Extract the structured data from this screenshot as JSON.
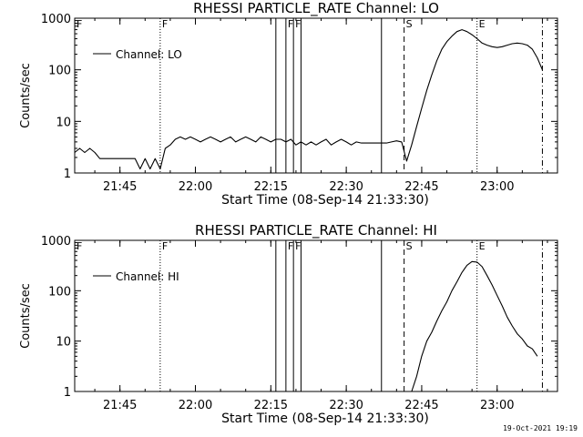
{
  "footer": {
    "timestamp": "19-Oct-2021 19:19"
  },
  "chart_data": [
    {
      "type": "line",
      "title": "RHESSI PARTICLE_RATE Channel: LO",
      "xlabel": "Start Time (08-Sep-14 21:33:30)",
      "ylabel": "Counts/sec",
      "y_scale": "log",
      "ylim": [
        1,
        1000
      ],
      "xlim": [
        "21:36",
        "23:12"
      ],
      "yticks": [
        {
          "v": 1,
          "label": "1"
        },
        {
          "v": 10,
          "label": "10"
        },
        {
          "v": 100,
          "label": "100"
        },
        {
          "v": 1000,
          "label": "1000"
        }
      ],
      "xticks": [
        "21:45",
        "22:00",
        "22:15",
        "22:30",
        "22:45",
        "23:00"
      ],
      "legend": {
        "position": "top-left",
        "entries": [
          "Channel: LO"
        ]
      },
      "markers": [
        {
          "time": "21:36",
          "label": "F",
          "style": "dotted"
        },
        {
          "time": "21:53",
          "label": "F",
          "style": "dotted"
        },
        {
          "time": "22:16",
          "label": "",
          "style": "solid"
        },
        {
          "time": "22:18",
          "label": "F",
          "style": "solid"
        },
        {
          "time": "22:19.5",
          "label": "F",
          "style": "solid"
        },
        {
          "time": "22:21",
          "label": "",
          "style": "solid"
        },
        {
          "time": "22:37",
          "label": "",
          "style": "solid"
        },
        {
          "time": "22:41.5",
          "label": "S",
          "style": "dashed"
        },
        {
          "time": "22:56",
          "label": "E",
          "style": "dotted"
        },
        {
          "time": "23:09",
          "label": "",
          "style": "dashdot"
        }
      ],
      "series": [
        {
          "x": [
            "21:36",
            "21:37",
            "21:38",
            "21:39",
            "21:40",
            "21:41",
            "21:42",
            "21:43",
            "21:44",
            "21:45",
            "21:46",
            "21:47",
            "21:48",
            "21:49",
            "21:50",
            "21:51",
            "21:52",
            "21:53",
            "21:54",
            "21:55",
            "21:56",
            "21:57",
            "21:58",
            "21:59",
            "22:00",
            "22:01",
            "22:02",
            "22:03",
            "22:04",
            "22:05",
            "22:06",
            "22:07",
            "22:08",
            "22:09",
            "22:10",
            "22:11",
            "22:12",
            "22:13",
            "22:14",
            "22:15",
            "22:16",
            "22:17",
            "22:18",
            "22:19",
            "22:20",
            "22:21",
            "22:22",
            "22:23",
            "22:24",
            "22:25",
            "22:26",
            "22:27",
            "22:28",
            "22:29",
            "22:30",
            "22:31",
            "22:32",
            "22:33",
            "22:34",
            "22:35",
            "22:36",
            "22:37",
            "22:38",
            "22:39",
            "22:40",
            "22:41",
            "22:42",
            "22:43",
            "22:44",
            "22:45",
            "22:46",
            "22:47",
            "22:48",
            "22:49",
            "22:50",
            "22:51",
            "22:52",
            "22:53",
            "22:54",
            "22:55",
            "22:56",
            "22:57",
            "22:58",
            "22:59",
            "23:00",
            "23:01",
            "23:02",
            "23:03",
            "23:04",
            "23:05",
            "23:06",
            "23:07",
            "23:08",
            "23:09"
          ],
          "values": [
            2.5,
            3,
            2.5,
            3,
            2.5,
            1.9,
            1.9,
            1.9,
            1.9,
            1.9,
            1.9,
            1.9,
            1.9,
            1.2,
            1.9,
            1.2,
            1.9,
            1.2,
            3,
            3.5,
            4.5,
            5,
            4.5,
            5,
            4.5,
            4,
            4.5,
            5,
            4.5,
            4,
            4.5,
            5,
            4,
            4.5,
            5,
            4.5,
            4,
            5,
            4.5,
            4,
            4.5,
            4.5,
            4,
            4.5,
            3.5,
            4,
            3.5,
            4,
            3.5,
            4,
            4.5,
            3.5,
            4,
            4.5,
            4,
            3.5,
            4,
            3.8,
            3.8,
            3.8,
            3.8,
            3.8,
            3.8,
            4,
            4.2,
            4,
            1.7,
            3.5,
            8,
            18,
            40,
            80,
            150,
            250,
            350,
            450,
            550,
            600,
            550,
            480,
            400,
            330,
            300,
            280,
            270,
            280,
            300,
            320,
            330,
            320,
            300,
            250,
            170,
            100
          ]
        }
      ]
    },
    {
      "type": "line",
      "title": "RHESSI PARTICLE_RATE Channel: HI",
      "xlabel": "Start Time (08-Sep-14 21:33:30)",
      "ylabel": "Counts/sec",
      "y_scale": "log",
      "ylim": [
        1,
        1000
      ],
      "xlim": [
        "21:36",
        "23:12"
      ],
      "yticks": [
        {
          "v": 1,
          "label": "1"
        },
        {
          "v": 10,
          "label": "10"
        },
        {
          "v": 100,
          "label": "100"
        },
        {
          "v": 1000,
          "label": "1000"
        }
      ],
      "xticks": [
        "21:45",
        "22:00",
        "22:15",
        "22:30",
        "22:45",
        "23:00"
      ],
      "legend": {
        "position": "top-left",
        "entries": [
          "Channel: HI"
        ]
      },
      "markers": [
        {
          "time": "21:36",
          "label": "F",
          "style": "dotted"
        },
        {
          "time": "21:53",
          "label": "F",
          "style": "dotted"
        },
        {
          "time": "22:16",
          "label": "",
          "style": "solid"
        },
        {
          "time": "22:18",
          "label": "F",
          "style": "solid"
        },
        {
          "time": "22:19.5",
          "label": "F",
          "style": "solid"
        },
        {
          "time": "22:21",
          "label": "",
          "style": "solid"
        },
        {
          "time": "22:37",
          "label": "",
          "style": "solid"
        },
        {
          "time": "22:41.5",
          "label": "S",
          "style": "dashed"
        },
        {
          "time": "22:56",
          "label": "E",
          "style": "dotted"
        },
        {
          "time": "23:09",
          "label": "",
          "style": "dashdot"
        }
      ],
      "series": [
        {
          "x": [
            "22:43",
            "22:44",
            "22:45",
            "22:46",
            "22:47",
            "22:48",
            "22:49",
            "22:50",
            "22:51",
            "22:52",
            "22:53",
            "22:54",
            "22:55",
            "22:56",
            "22:57",
            "22:58",
            "22:59",
            "23:00",
            "23:01",
            "23:02",
            "23:03",
            "23:04",
            "23:05",
            "23:06",
            "23:07",
            "23:08"
          ],
          "values": [
            1,
            2,
            5,
            10,
            15,
            25,
            40,
            60,
            100,
            150,
            230,
            320,
            380,
            370,
            300,
            200,
            130,
            80,
            50,
            30,
            20,
            14,
            11,
            8,
            7,
            5
          ]
        }
      ]
    }
  ]
}
